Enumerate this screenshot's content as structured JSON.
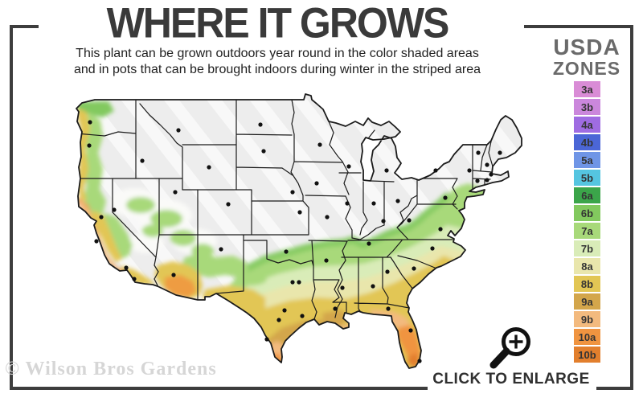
{
  "header": {
    "title": "WHERE IT GROWS",
    "subtitle_line1": "This plant can be grown outdoors year round in the color shaded areas",
    "subtitle_line2": "and in pots that can be brought indoors during winter in the striped area"
  },
  "legend": {
    "title_line1": "USDA",
    "title_line2": "ZONES",
    "zones": [
      {
        "label": "3a",
        "color": "#d98cd6"
      },
      {
        "label": "3b",
        "color": "#cb87dc"
      },
      {
        "label": "4a",
        "color": "#9f6ce2"
      },
      {
        "label": "4b",
        "color": "#4b66d6"
      },
      {
        "label": "5a",
        "color": "#6f95e6"
      },
      {
        "label": "5b",
        "color": "#55c5e0"
      },
      {
        "label": "6a",
        "color": "#3ba54a"
      },
      {
        "label": "6b",
        "color": "#82c95e"
      },
      {
        "label": "7a",
        "color": "#a8d97a"
      },
      {
        "label": "7b",
        "color": "#d9ecb8"
      },
      {
        "label": "8a",
        "color": "#e9e6ac"
      },
      {
        "label": "8b",
        "color": "#e2c654"
      },
      {
        "label": "9a",
        "color": "#d3a64b"
      },
      {
        "label": "9b",
        "color": "#f3ba7e"
      },
      {
        "label": "10a",
        "color": "#f09440"
      },
      {
        "label": "10b",
        "color": "#e27f2d"
      }
    ]
  },
  "map": {
    "colors": {
      "base_gray": "#ededed",
      "stripe_white": "#ffffff",
      "outline_black": "#1b1b1b",
      "green_rim": "#7cc355",
      "green_mid": "#9ed172",
      "pale_white_patch": "#fafaf8"
    }
  },
  "footer": {
    "watermark": "© Wilson Bros Gardens",
    "enlarge_label": "CLICK TO ENLARGE"
  }
}
